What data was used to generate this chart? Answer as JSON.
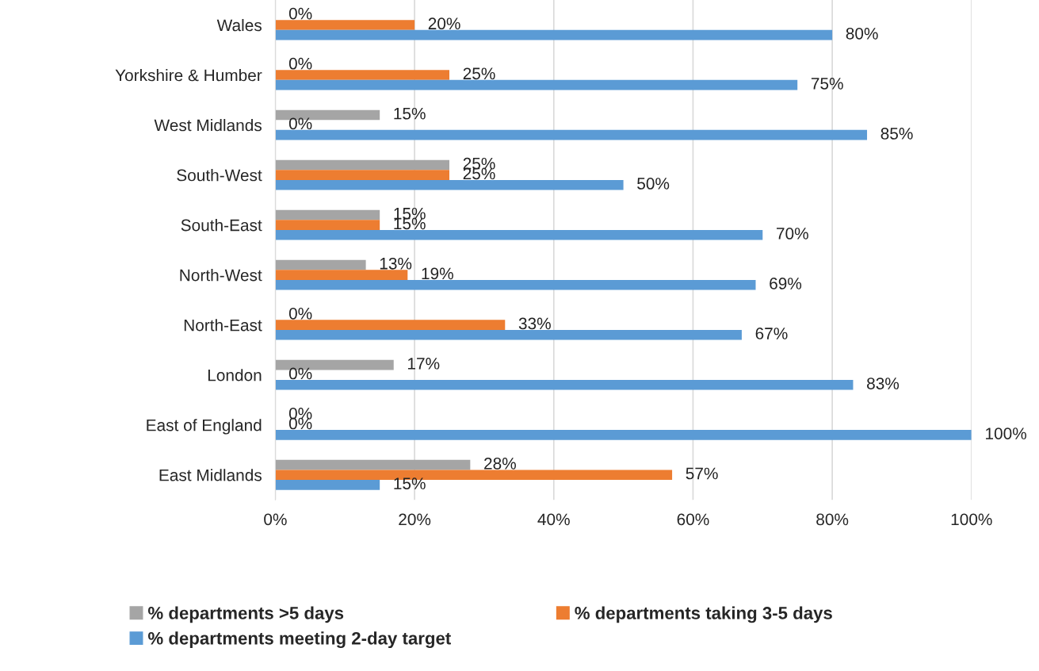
{
  "chart_data": {
    "type": "bar",
    "orientation": "horizontal",
    "categories": [
      "Wales",
      "Yorkshire & Humber",
      "West Midlands",
      "South-West",
      "South-East",
      "North-West",
      "North-East",
      "London",
      "East of England",
      "East Midlands"
    ],
    "series": [
      {
        "name": "% departments >5 days",
        "color": "#a5a5a5",
        "values": [
          0,
          0,
          15,
          25,
          15,
          13,
          0,
          17,
          0,
          28
        ],
        "value_labels": [
          "0%",
          "0%",
          "15%",
          "25%",
          "15%",
          "13%",
          "0%",
          "17%",
          "0%",
          "28%"
        ]
      },
      {
        "name": "% departments taking 3-5 days",
        "color": "#ed7d31",
        "values": [
          20,
          25,
          0,
          25,
          15,
          19,
          33,
          0,
          0,
          57
        ],
        "value_labels": [
          "20%",
          "25%",
          "0%",
          "25%",
          "15%",
          "19%",
          "33%",
          "0%",
          "0%",
          "57%"
        ]
      },
      {
        "name": "% departments meeting 2-day target",
        "color": "#5b9bd5",
        "values": [
          80,
          75,
          85,
          50,
          70,
          69,
          67,
          83,
          100,
          15
        ],
        "value_labels": [
          "80%",
          "75%",
          "85%",
          "50%",
          "70%",
          "69%",
          "67%",
          "83%",
          "100%",
          "15%"
        ]
      }
    ],
    "xlim": [
      0,
      100
    ],
    "xticks": [
      {
        "value": 0,
        "label": "0%"
      },
      {
        "value": 20,
        "label": "20%"
      },
      {
        "value": 40,
        "label": "40%"
      },
      {
        "value": 60,
        "label": "60%"
      },
      {
        "value": 80,
        "label": "80%"
      },
      {
        "value": 100,
        "label": "100%"
      }
    ],
    "grid": "x",
    "legend": "bottom"
  }
}
